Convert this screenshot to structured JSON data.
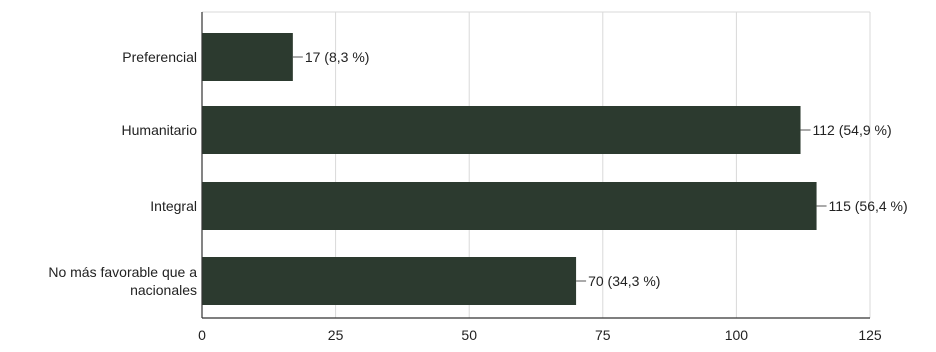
{
  "chart_data": {
    "type": "bar",
    "orientation": "horizontal",
    "categories": [
      [
        "Preferencial"
      ],
      [
        "Humanitario"
      ],
      [
        "Integral"
      ],
      [
        "No más favorable que a",
        "nacionales"
      ]
    ],
    "values": [
      17,
      112,
      115,
      70
    ],
    "data_labels": [
      "17 (8,3 %)",
      "112 (54,9 %)",
      "115 (56,4 %)",
      "70 (34,3 %)"
    ],
    "xlim": [
      0,
      125
    ],
    "xticks": [
      0,
      25,
      50,
      75,
      100,
      125
    ],
    "xtick_labels": [
      "0",
      "25",
      "50",
      "75",
      "100",
      "125"
    ],
    "grid": true,
    "title": "",
    "xlabel": "",
    "ylabel": "",
    "colors": {
      "bar": "#2c3a2f",
      "grid": "#d9d9d9",
      "axis": "#333333",
      "text": "#222222",
      "leader": "#555555"
    }
  }
}
